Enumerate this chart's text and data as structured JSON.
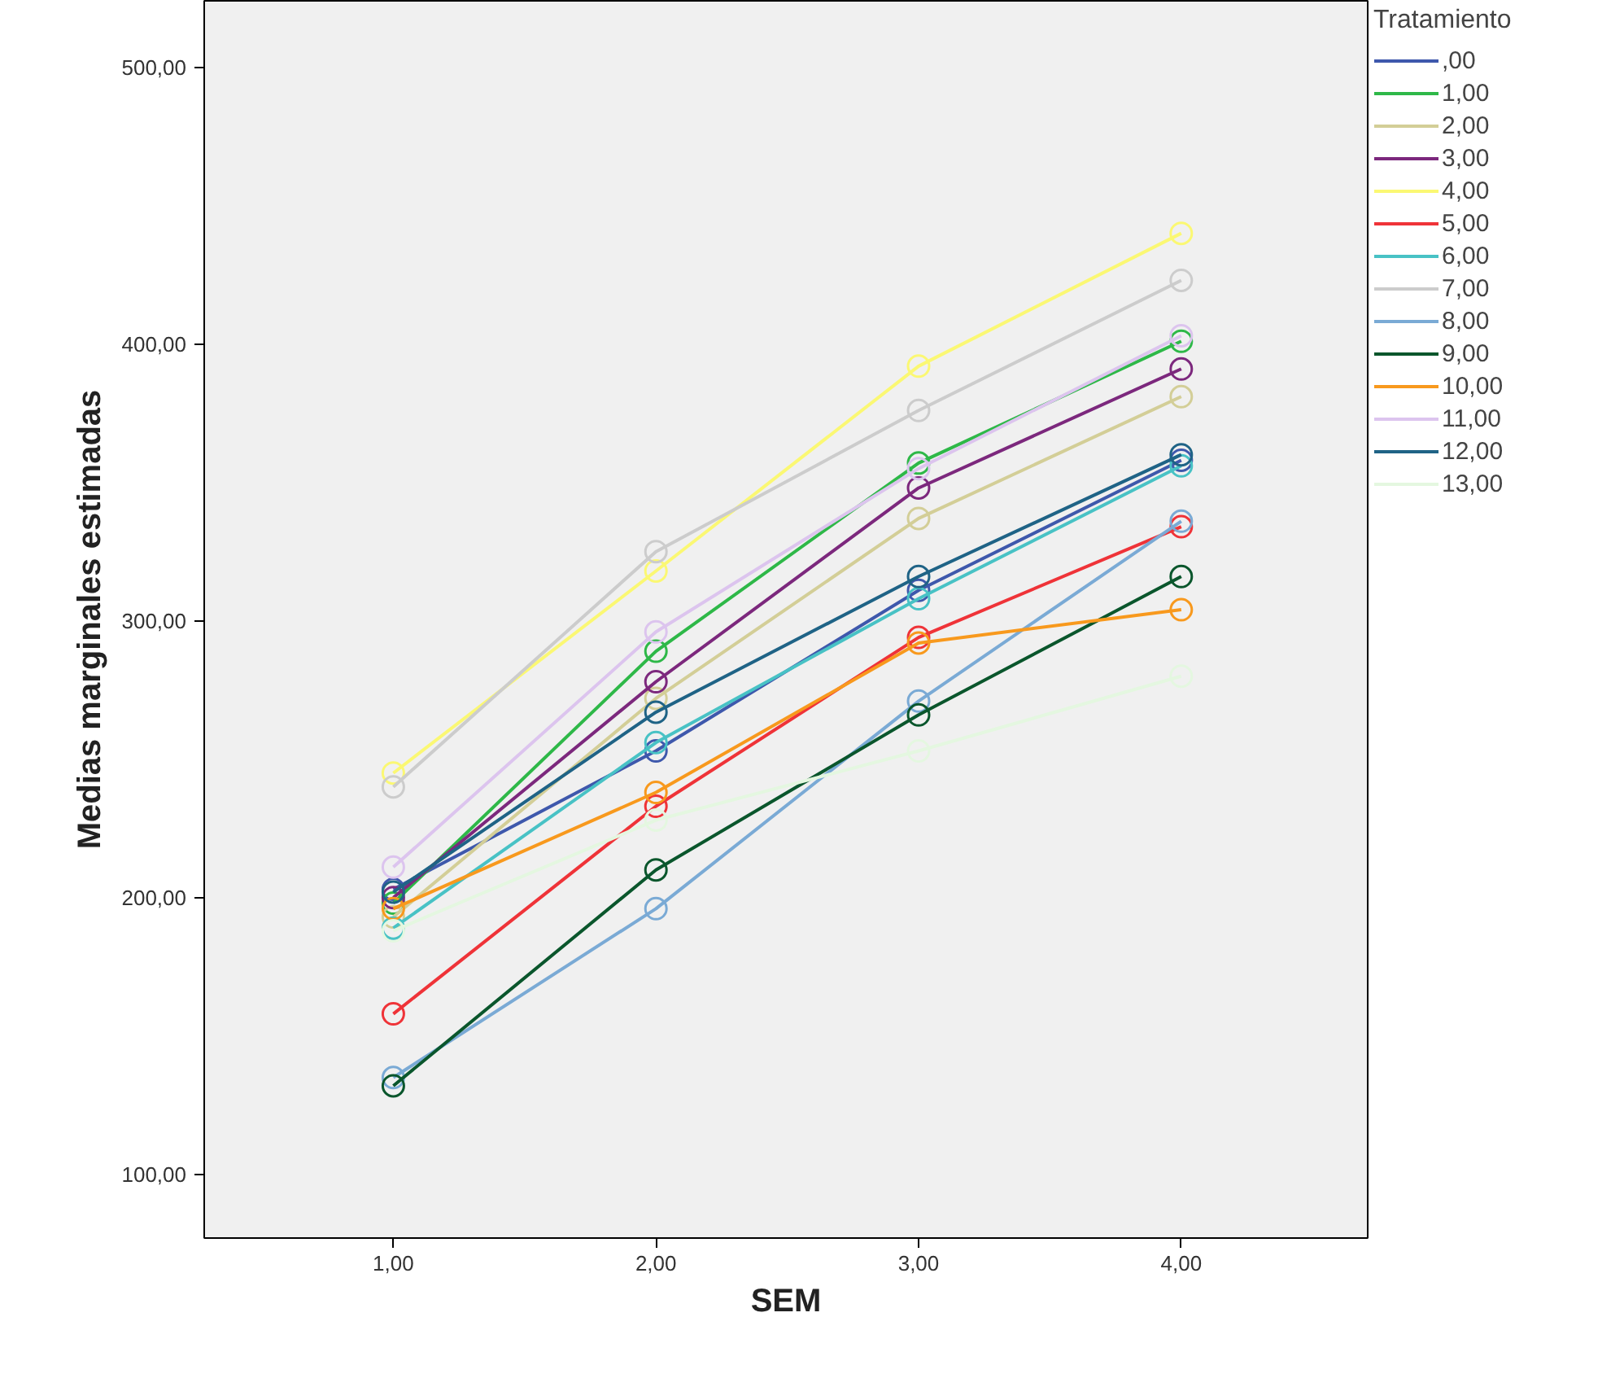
{
  "chart_data": {
    "type": "line",
    "xlabel": "SEM",
    "ylabel": "Medias marginales estimadas",
    "legend_title": "Tratamiento",
    "x": [
      1,
      2,
      3,
      4
    ],
    "xlim": [
      0.28,
      4.71
    ],
    "ylim": [
      77,
      524
    ],
    "xticks": [
      {
        "value": 1,
        "label": "1,00"
      },
      {
        "value": 2,
        "label": "2,00"
      },
      {
        "value": 3,
        "label": "3,00"
      },
      {
        "value": 4,
        "label": "4,00"
      }
    ],
    "yticks": [
      {
        "value": 100,
        "label": "100,00"
      },
      {
        "value": 200,
        "label": "200,00"
      },
      {
        "value": 300,
        "label": "300,00"
      },
      {
        "value": 400,
        "label": "400,00"
      },
      {
        "value": 500,
        "label": "500,00"
      }
    ],
    "grid": false,
    "legend": "right",
    "marker": "circle",
    "line_style": "solid",
    "series": [
      {
        "name": ",00",
        "color": "#3e58ac",
        "values": [
          203,
          253,
          311,
          358
        ]
      },
      {
        "name": "1,00",
        "color": "#2eb848",
        "values": [
          198,
          289,
          357,
          401
        ]
      },
      {
        "name": "2,00",
        "color": "#d3ce97",
        "values": [
          193,
          272,
          337,
          381
        ]
      },
      {
        "name": "3,00",
        "color": "#7c287d",
        "values": [
          200,
          278,
          348,
          391
        ]
      },
      {
        "name": "4,00",
        "color": "#fbf873",
        "values": [
          245,
          318,
          392,
          440
        ]
      },
      {
        "name": "5,00",
        "color": "#ef3338",
        "values": [
          158,
          233,
          294,
          334
        ]
      },
      {
        "name": "6,00",
        "color": "#48c2c5",
        "values": [
          189,
          256,
          308,
          356
        ]
      },
      {
        "name": "7,00",
        "color": "#cccccc",
        "values": [
          240,
          325,
          376,
          423
        ]
      },
      {
        "name": "8,00",
        "color": "#7aaad5",
        "values": [
          135,
          196,
          271,
          336
        ]
      },
      {
        "name": "9,00",
        "color": "#0a562c",
        "values": [
          132,
          210,
          266,
          316
        ]
      },
      {
        "name": "10,00",
        "color": "#f8991d",
        "values": [
          196,
          238,
          292,
          304
        ]
      },
      {
        "name": "11,00",
        "color": "#dcc4ee",
        "values": [
          211,
          296,
          355,
          403
        ]
      },
      {
        "name": "12,00",
        "color": "#1f6386",
        "values": [
          202,
          267,
          316,
          360
        ]
      },
      {
        "name": "13,00",
        "color": "#e4f7e0",
        "values": [
          188,
          228,
          253,
          280
        ]
      }
    ]
  }
}
